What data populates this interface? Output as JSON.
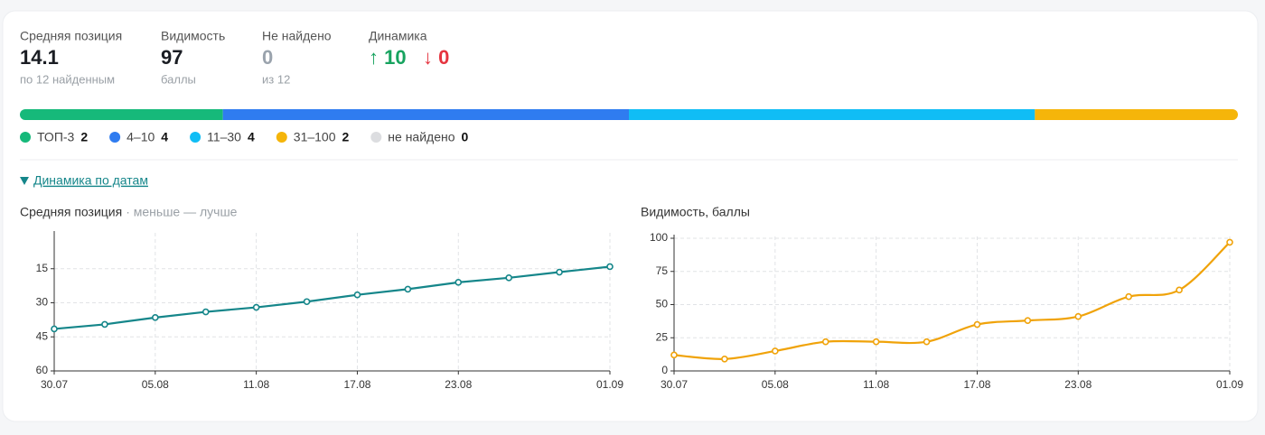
{
  "stats": [
    {
      "label": "Средняя позиция",
      "value": 14.1,
      "note": "по 12 найденным"
    },
    {
      "label": "Видимость",
      "value": 97,
      "note": "баллы"
    },
    {
      "label": "Не найдено",
      "value": 0,
      "note": "из 12"
    }
  ],
  "dynamics": {
    "label": "Динамика",
    "up": "↑ 10",
    "down": "↓ 0"
  },
  "distribution": [
    {
      "name": "ТОП-3",
      "count": 2,
      "color": "#16b97a"
    },
    {
      "name": "4–10",
      "count": 4,
      "color": "#2f7cf0"
    },
    {
      "name": "11–30",
      "count": 4,
      "color": "#10bdf5"
    },
    {
      "name": "31–100",
      "count": 2,
      "color": "#f5b50a"
    },
    {
      "name": "не найдено",
      "count": 0,
      "color": "#dcdde0"
    }
  ],
  "toggle": "Динамика по датам",
  "chart_data": [
    {
      "type": "line",
      "title": "Средняя позиция",
      "subtitle": "· меньше — лучше",
      "categories": [
        "30.07",
        null,
        "05.08",
        null,
        "11.08",
        null,
        "17.08",
        null,
        "23.08",
        null,
        null,
        "01.09"
      ],
      "values": [
        41.5,
        39.5,
        36.5,
        34,
        32,
        29.5,
        26.5,
        24,
        21,
        19,
        16.5,
        14.1
      ],
      "color": "#15868a",
      "ylim": [
        0,
        60
      ],
      "yticks": [
        15,
        30,
        45,
        60
      ],
      "inverted": true,
      "smooth": false,
      "grid": true
    },
    {
      "type": "line",
      "title": "Видимость, баллы",
      "categories": [
        "30.07",
        null,
        "05.08",
        null,
        "11.08",
        null,
        "17.08",
        null,
        "23.08",
        null,
        null,
        "01.09"
      ],
      "values": [
        12,
        9,
        15,
        22,
        22,
        22,
        35,
        38,
        41,
        56,
        61,
        97
      ],
      "color": "#f0a30a",
      "ylim": [
        0,
        100
      ],
      "yticks": [
        0,
        25,
        50,
        75,
        100
      ],
      "inverted": false,
      "smooth": true,
      "grid": true
    }
  ]
}
